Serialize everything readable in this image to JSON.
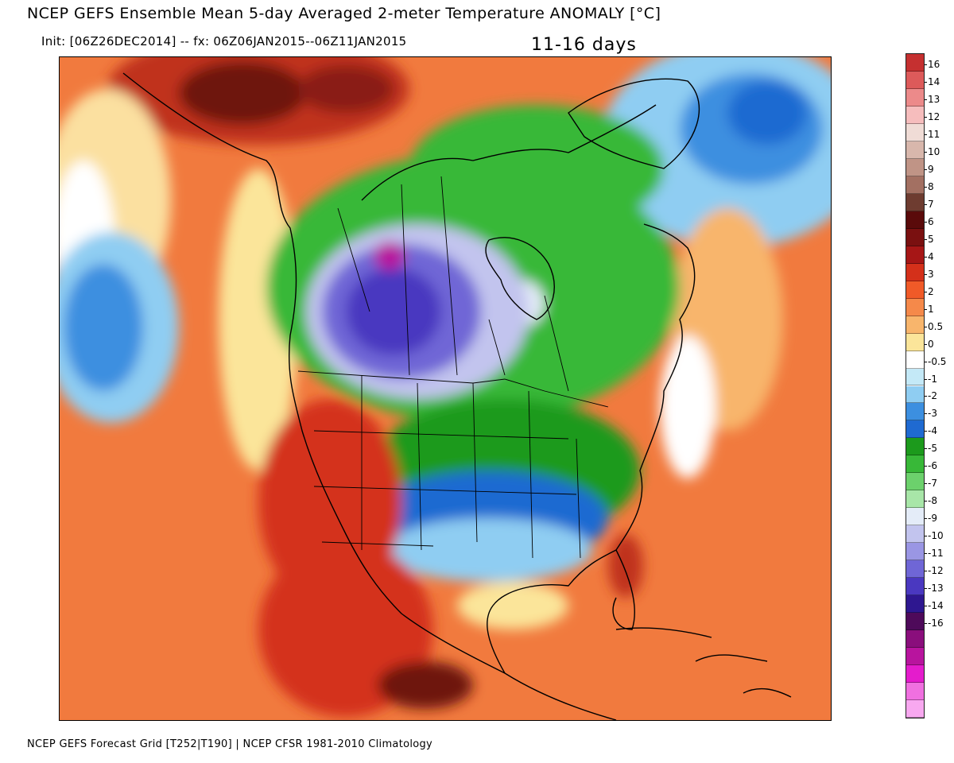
{
  "header": {
    "title": "NCEP GEFS Ensemble Mean 5-day Averaged 2-meter Temperature ANOMALY [°C]",
    "init": "Init: [06Z26DEC2014] -- fx: 06Z06JAN2015--06Z11JAN2015",
    "period": "11-16 days"
  },
  "footer": {
    "source": "NCEP GEFS Forecast Grid [T252|T190] | NCEP CFSR 1981-2010 Climatology"
  },
  "colorbar": {
    "levels": [
      {
        "label": "16",
        "color": "#c53030"
      },
      {
        "label": "14",
        "color": "#dd5a5a"
      },
      {
        "label": "13",
        "color": "#ec8a8a"
      },
      {
        "label": "12",
        "color": "#f6bdbd"
      },
      {
        "label": "11",
        "color": "#f0dcd6"
      },
      {
        "label": "10",
        "color": "#d8b7ac"
      },
      {
        "label": "9",
        "color": "#c09486"
      },
      {
        "label": "8",
        "color": "#a37062"
      },
      {
        "label": "7",
        "color": "#6e3c30"
      },
      {
        "label": "6",
        "color": "#5a0a0a"
      },
      {
        "label": "5",
        "color": "#7a1010"
      },
      {
        "label": "4",
        "color": "#a61616"
      },
      {
        "label": "3",
        "color": "#d4301a"
      },
      {
        "label": "2",
        "color": "#f05a28"
      },
      {
        "label": "1",
        "color": "#f5894a"
      },
      {
        "label": "0.5",
        "color": "#f8b56c"
      },
      {
        "label": "0",
        "color": "#fbe59a"
      },
      {
        "label": "-0.5",
        "color": "#ffffff"
      },
      {
        "label": "-1",
        "color": "#c4e9f7"
      },
      {
        "label": "-2",
        "color": "#8fcdf2"
      },
      {
        "label": "-3",
        "color": "#3c8fe0"
      },
      {
        "label": "-4",
        "color": "#1f6ad1"
      },
      {
        "label": "-5",
        "color": "#1c9a1c"
      },
      {
        "label": "-6",
        "color": "#38b838"
      },
      {
        "label": "-7",
        "color": "#6cd16c"
      },
      {
        "label": "-8",
        "color": "#a8e6a8"
      },
      {
        "label": "-9",
        "color": "#e4ecf8"
      },
      {
        "label": "-10",
        "color": "#c2c4ee"
      },
      {
        "label": "-11",
        "color": "#9a96e4"
      },
      {
        "label": "-12",
        "color": "#6f66d6"
      },
      {
        "label": "-13",
        "color": "#4a38c0"
      },
      {
        "label": "-14",
        "color": "#2e1790"
      },
      {
        "label": "-16",
        "color": "#4e0a5a"
      },
      {
        "label": "",
        "color": "#8a0e7c"
      },
      {
        "label": "",
        "color": "#b8149e"
      },
      {
        "label": "",
        "color": "#e41ccc"
      },
      {
        "label": "",
        "color": "#f070e0"
      },
      {
        "label": "",
        "color": "#f8a8f0"
      }
    ]
  }
}
